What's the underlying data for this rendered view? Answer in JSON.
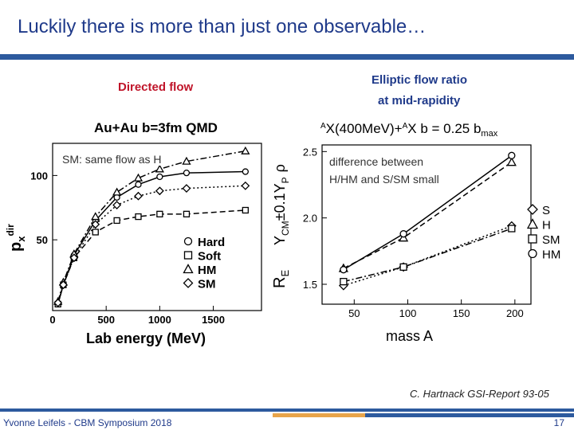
{
  "slide": {
    "title": "Luckily there is more than just one observable…",
    "left_heading": "Directed flow",
    "right_heading_line1": "Elliptic flow ratio",
    "right_heading_line2": "at mid-rapidity",
    "left_note": "SM: same flow as H",
    "right_note": "difference between H/HM and S/SM small",
    "citation": "C. Hartnack GSI-Report 93-05",
    "footer_left": "Yvonne Leifels - CBM Symposium 2018",
    "page_number": "17",
    "colors": {
      "title": "#1f3a8a",
      "left_heading": "#c0152a",
      "bar": "#2d5a9e",
      "accent": "#e8a44a"
    }
  },
  "chart_data": [
    {
      "type": "line",
      "title": "Au+Au b=3fm QMD",
      "xlabel": "Lab energy (MeV)",
      "ylabel": "pxdir",
      "ylabel_main": "p",
      "ylabel_sub": "x",
      "ylabel_sup": "dir",
      "xlim": [
        0,
        1950
      ],
      "ylim": [
        -5,
        125
      ],
      "xticks": [
        0,
        500,
        1000,
        1500
      ],
      "yticks": [
        50,
        100
      ],
      "x": [
        50,
        100,
        200,
        400,
        600,
        800,
        1000,
        1250,
        1800
      ],
      "series": [
        {
          "name": "Hard",
          "marker": "circle",
          "dash": "solid",
          "values": [
            0,
            15,
            38,
            65,
            83,
            93,
            99,
            102,
            103
          ]
        },
        {
          "name": "Soft",
          "marker": "square",
          "dash": "dashed",
          "values": [
            0,
            15,
            36,
            56,
            65,
            68,
            70,
            70,
            73
          ]
        },
        {
          "name": "HM",
          "marker": "triangle",
          "dash": "dashdot",
          "values": [
            2,
            17,
            39,
            68,
            87,
            98,
            105,
            111,
            119
          ]
        },
        {
          "name": "SM",
          "marker": "diamond",
          "dash": "dotted",
          "values": [
            1,
            15,
            36,
            62,
            77,
            84,
            88,
            90,
            92
          ]
        }
      ],
      "legend_position": "bottom-right"
    },
    {
      "type": "line",
      "title": "AX(400MeV)+AX b = 0.25 bmax",
      "title_prefix": "A",
      "title_main": "X(400MeV)+",
      "title_prefix2": "A",
      "title_rest": "X  b  =  0.25  b",
      "title_sub": "max",
      "xlabel": "mass A",
      "ylabel": "RE YCM±0.1YP ρ",
      "ylabel_main": "R",
      "ylabel_sub": "E",
      "ylabel2_main": "Y",
      "ylabel2_sub": "CM",
      "ylabel2_mid": "±0.1Y",
      "ylabel2_sub2": "P",
      "ylabel2_end": "ρ",
      "xlim": [
        20,
        215
      ],
      "ylim": [
        1.35,
        2.55
      ],
      "xticks": [
        50,
        100,
        150,
        200
      ],
      "yticks": [
        1.5,
        2.0,
        2.5
      ],
      "x": [
        40,
        96,
        197
      ],
      "series": [
        {
          "name": "S",
          "marker": "diamond",
          "dash": "dotted",
          "values": [
            1.49,
            1.63,
            1.94
          ]
        },
        {
          "name": "H",
          "marker": "triangle",
          "dash": "dashed",
          "values": [
            1.62,
            1.85,
            2.42
          ]
        },
        {
          "name": "SM",
          "marker": "square",
          "dash": "dashdot",
          "values": [
            1.52,
            1.63,
            1.92
          ]
        },
        {
          "name": "HM",
          "marker": "circle",
          "dash": "solid",
          "values": [
            1.61,
            1.88,
            2.47
          ]
        }
      ],
      "legend_position": "right"
    }
  ]
}
